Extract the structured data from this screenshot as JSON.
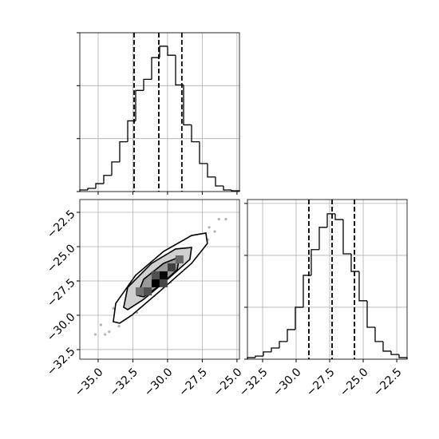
{
  "chart_data": [
    {
      "type": "histogram",
      "color": "#000000",
      "grid": true,
      "bins": [
        -36.32,
        -35.745,
        -35.17,
        -34.595,
        -34.02,
        -33.445,
        -32.87,
        -32.295,
        -31.72,
        -31.145,
        -30.57,
        -29.995,
        -29.42,
        -28.845,
        -28.27,
        -27.695,
        -27.12,
        -26.545,
        -25.97,
        -25.395,
        -24.82
      ],
      "counts": [
        6,
        12,
        30,
        61,
        112,
        188,
        267,
        382,
        424,
        506,
        549,
        515,
        403,
        252,
        188,
        106,
        55,
        21,
        6,
        3
      ],
      "quantiles": [
        -32.41,
        -30.63,
        -28.97
      ],
      "xlim": [
        -36.32,
        -24.82
      ],
      "ylim": [
        0,
        600
      ],
      "xticks": [
        -35,
        -32.5,
        -30,
        -27.5,
        -25
      ],
      "yticks": [
        0,
        200,
        400,
        600
      ]
    },
    {
      "type": "scatter",
      "color": "#b0b0b0",
      "grid": true,
      "x": [
        -34.8,
        -34.2,
        -33.9,
        -33.5,
        -33.1,
        -32.8,
        -32.5,
        -32.2,
        -31.9,
        -31.6,
        -31.3,
        -31.0,
        -30.7,
        -30.4,
        -30.1,
        -29.8,
        -29.5,
        -29.2,
        -28.9,
        -28.6,
        -28.3,
        -28.0,
        -27.7,
        -27.4,
        -27.0,
        -26.6,
        -34.5,
        -33.7,
        -33.0,
        -32.4,
        -31.8,
        -31.2,
        -30.6,
        -30.0,
        -29.4,
        -28.8,
        -28.2,
        -27.6,
        -27.1,
        -26.3,
        -35.2,
        -25.8
      ],
      "y": [
        -30.7,
        -31.2,
        -29.5,
        -30.8,
        -28.5,
        -30.0,
        -28.7,
        -29.8,
        -27.4,
        -28.7,
        -27.2,
        -28.6,
        -26.1,
        -27.6,
        -26.2,
        -27.6,
        -25.4,
        -26.6,
        -25.2,
        -26.2,
        -24.4,
        -25.3,
        -24.2,
        -25.0,
        -23.6,
        -23.9,
        -31.4,
        -29.9,
        -29.1,
        -28.8,
        -28.7,
        -27.7,
        -27.5,
        -26.4,
        -26.5,
        -25.4,
        -25.2,
        -24.4,
        -24.5,
        -23.0,
        -31.4,
        -23.0
      ],
      "contours": [
        {
          "x": [
            -33.91,
            -33.73,
            -32.3,
            -30.29,
            -28.27,
            -27.24,
            -27.13,
            -28.27,
            -30.57,
            -32.58,
            -33.45
          ],
          "y": [
            -30.47,
            -29.13,
            -27.09,
            -25.35,
            -24.19,
            -24.01,
            -24.77,
            -26.22,
            -28.26,
            -30.0,
            -30.58
          ]
        },
        {
          "x": [
            -33.16,
            -32.87,
            -31.15,
            -29.42,
            -28.27,
            -28.39,
            -30.0,
            -31.72,
            -32.87
          ],
          "y": [
            -29.42,
            -27.97,
            -26.22,
            -25.17,
            -25.06,
            -25.93,
            -27.38,
            -28.84,
            -29.59
          ]
        },
        {
          "x": [
            -32.18,
            -31.72,
            -30.29,
            -29.14,
            -29.31,
            -30.57,
            -31.72
          ],
          "y": [
            -28.55,
            -27.38,
            -26.22,
            -25.76,
            -26.69,
            -27.85,
            -28.66
          ]
        }
      ],
      "cells": {
        "x": [
          -30.86,
          -30.29,
          -29.71,
          -31.43,
          -30.29,
          -30.86,
          -29.14,
          -32.01
        ],
        "y": [
          -27.67,
          -27.09,
          -26.51,
          -28.26,
          -27.67,
          -27.09,
          -25.93,
          -28.26
        ],
        "density": [
          1,
          0.95,
          0.6,
          0.5,
          0.55,
          0.5,
          0.35,
          0.3
        ]
      },
      "xlim": [
        -36.32,
        -24.82
      ],
      "ylim": [
        -33.2,
        -21.57
      ],
      "xticks": [
        {
          "value": -35,
          "label": "−35.0"
        },
        {
          "value": -32.5,
          "label": "−32.5"
        },
        {
          "value": -30,
          "label": "−30.0"
        },
        {
          "value": -27.5,
          "label": "−27.5"
        },
        {
          "value": -25,
          "label": "−25.0"
        }
      ],
      "yticks": [
        {
          "value": -22.5,
          "label": "−22.5"
        },
        {
          "value": -25,
          "label": "−25.0"
        },
        {
          "value": -27.5,
          "label": "−27.5"
        },
        {
          "value": -30,
          "label": "−30.0"
        },
        {
          "value": -32.5,
          "label": "−32.5"
        }
      ]
    },
    {
      "type": "histogram",
      "color": "#000000",
      "grid": true,
      "bins": [
        -33.63,
        -33.035,
        -32.44,
        -31.845,
        -31.25,
        -30.655,
        -30.06,
        -29.465,
        -28.87,
        -28.275,
        -27.68,
        -27.085,
        -26.49,
        -25.895,
        -25.3,
        -24.705,
        -24.11,
        -23.515,
        -22.92,
        -22.325,
        -21.73
      ],
      "counts": [
        6,
        12,
        28,
        43,
        68,
        114,
        200,
        323,
        422,
        508,
        560,
        538,
        406,
        338,
        225,
        123,
        68,
        31,
        18,
        6
      ],
      "quantiles": [
        -29.05,
        -27.32,
        -25.65
      ],
      "xlim": [
        -33.63,
        -21.73
      ],
      "ylim": [
        0,
        615
      ],
      "xticks": [
        {
          "value": -32.5,
          "label": "−32.5"
        },
        {
          "value": -30,
          "label": "−30.0"
        },
        {
          "value": -27.5,
          "label": "−27.5"
        },
        {
          "value": -25,
          "label": "−25.0"
        },
        {
          "value": -22.5,
          "label": "−22.5"
        }
      ],
      "yticks": [
        0,
        200,
        400,
        600
      ]
    }
  ]
}
